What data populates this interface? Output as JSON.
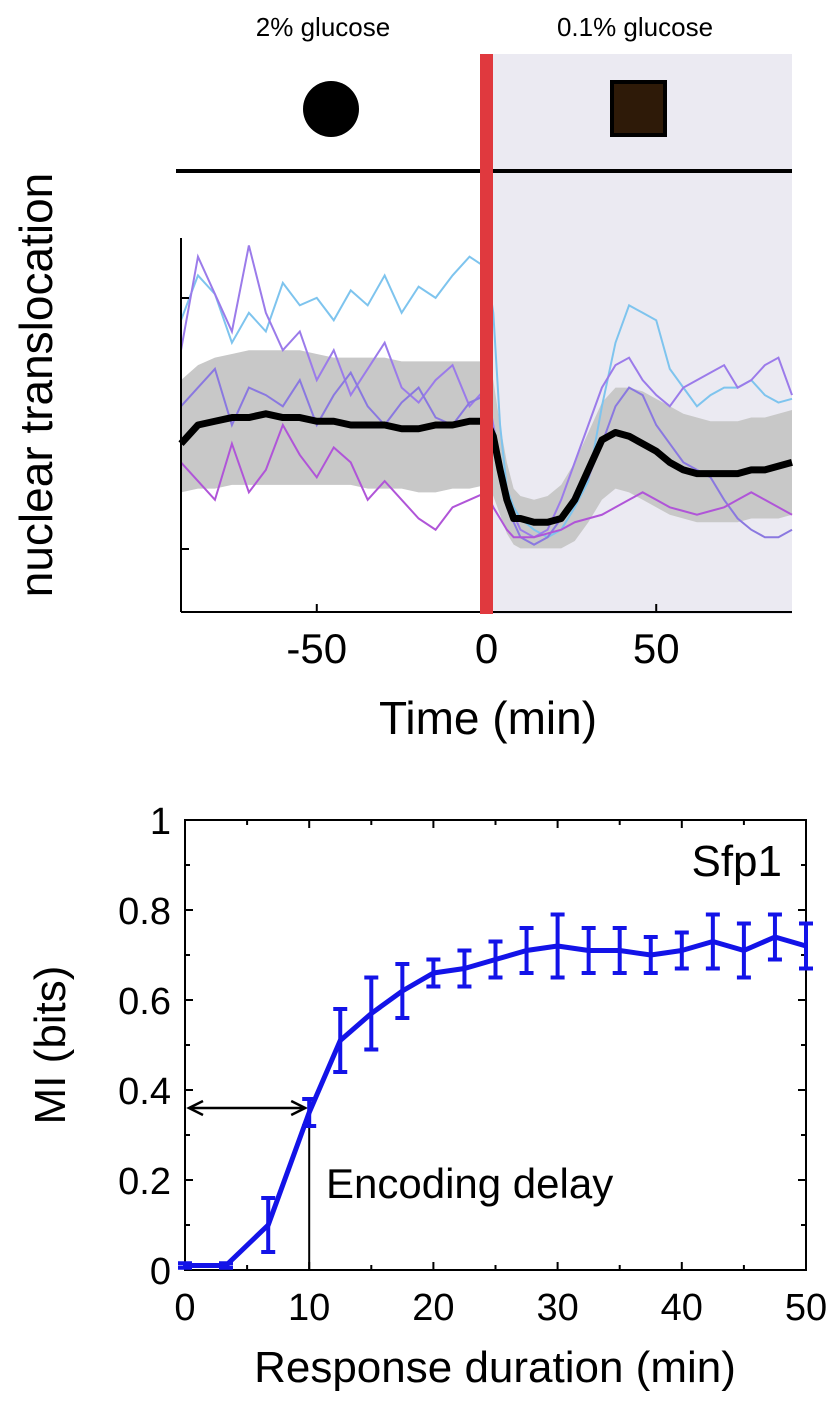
{
  "chart_data": [
    {
      "type": "line",
      "title": "",
      "conditions": [
        {
          "label": "2% glucose",
          "marker": "filled-circle-icon",
          "marker_color": "#000000"
        },
        {
          "label": "0.1% glucose",
          "marker": "filled-square-icon",
          "marker_color": "#2e1a08"
        }
      ],
      "xlabel": "Time (min)",
      "ylabel": "nuclear translocation",
      "xlim": [
        -90,
        90
      ],
      "ylim": [
        0,
        1
      ],
      "xticks": [
        -50,
        0,
        50
      ],
      "xtick_labels": [
        "-50",
        "0",
        "50"
      ],
      "stimulus_time": 0,
      "stimulus_color": "#e0393e",
      "shaded_region": {
        "from": 0,
        "to": 90,
        "color": "#ebeaf2"
      },
      "band_color": "#c8c8c8",
      "mean_color": "#000000",
      "time": [
        -90,
        -85,
        -80,
        -75,
        -70,
        -65,
        -60,
        -55,
        -50,
        -45,
        -40,
        -35,
        -30,
        -25,
        -20,
        -15,
        -10,
        -5,
        0,
        2,
        4,
        6,
        8,
        10,
        14,
        18,
        22,
        26,
        30,
        34,
        38,
        42,
        46,
        50,
        54,
        58,
        62,
        66,
        70,
        74,
        78,
        82,
        86,
        90
      ],
      "mean": [
        0.45,
        0.5,
        0.51,
        0.52,
        0.52,
        0.53,
        0.52,
        0.52,
        0.51,
        0.51,
        0.5,
        0.5,
        0.5,
        0.49,
        0.49,
        0.5,
        0.5,
        0.51,
        0.51,
        0.47,
        0.38,
        0.3,
        0.25,
        0.25,
        0.24,
        0.24,
        0.25,
        0.3,
        0.38,
        0.46,
        0.48,
        0.47,
        0.45,
        0.43,
        0.4,
        0.38,
        0.37,
        0.37,
        0.37,
        0.37,
        0.38,
        0.38,
        0.39,
        0.4
      ],
      "band_upper": [
        0.62,
        0.66,
        0.68,
        0.69,
        0.7,
        0.7,
        0.7,
        0.7,
        0.69,
        0.68,
        0.68,
        0.68,
        0.68,
        0.67,
        0.67,
        0.67,
        0.67,
        0.67,
        0.67,
        0.62,
        0.5,
        0.4,
        0.33,
        0.31,
        0.3,
        0.31,
        0.34,
        0.4,
        0.48,
        0.56,
        0.6,
        0.6,
        0.59,
        0.57,
        0.55,
        0.53,
        0.52,
        0.51,
        0.51,
        0.51,
        0.52,
        0.52,
        0.53,
        0.54
      ],
      "band_lower": [
        0.32,
        0.33,
        0.33,
        0.34,
        0.34,
        0.34,
        0.34,
        0.34,
        0.34,
        0.34,
        0.34,
        0.33,
        0.33,
        0.33,
        0.32,
        0.32,
        0.33,
        0.33,
        0.34,
        0.31,
        0.26,
        0.21,
        0.18,
        0.17,
        0.17,
        0.17,
        0.17,
        0.19,
        0.24,
        0.3,
        0.33,
        0.32,
        0.3,
        0.28,
        0.26,
        0.25,
        0.24,
        0.24,
        0.24,
        0.24,
        0.25,
        0.25,
        0.25,
        0.26
      ],
      "series": [
        {
          "color": "#7ec4ee",
          "values": [
            0.78,
            0.9,
            0.85,
            0.72,
            0.8,
            0.75,
            0.88,
            0.82,
            0.84,
            0.78,
            0.86,
            0.82,
            0.9,
            0.8,
            0.87,
            0.84,
            0.9,
            0.95,
            0.92,
            0.8,
            0.5,
            0.33,
            0.28,
            0.25,
            0.22,
            0.2,
            0.22,
            0.28,
            0.35,
            0.55,
            0.72,
            0.82,
            0.8,
            0.78,
            0.65,
            0.6,
            0.55,
            0.58,
            0.6,
            0.6,
            0.62,
            0.58,
            0.56,
            0.57
          ]
        },
        {
          "color": "#9b7bea",
          "values": [
            0.7,
            0.95,
            0.85,
            0.75,
            0.98,
            0.8,
            0.7,
            0.75,
            0.62,
            0.7,
            0.58,
            0.65,
            0.72,
            0.6,
            0.56,
            0.62,
            0.66,
            0.55,
            0.6,
            0.5,
            0.4,
            0.3,
            0.26,
            0.22,
            0.2,
            0.22,
            0.3,
            0.4,
            0.5,
            0.6,
            0.66,
            0.68,
            0.62,
            0.58,
            0.55,
            0.6,
            0.62,
            0.64,
            0.66,
            0.6,
            0.62,
            0.66,
            0.68,
            0.58
          ]
        },
        {
          "color": "#8a78e0",
          "values": [
            0.55,
            0.6,
            0.65,
            0.5,
            0.6,
            0.58,
            0.55,
            0.62,
            0.5,
            0.58,
            0.64,
            0.55,
            0.5,
            0.56,
            0.6,
            0.52,
            0.5,
            0.56,
            0.58,
            0.45,
            0.35,
            0.28,
            0.24,
            0.2,
            0.18,
            0.2,
            0.25,
            0.3,
            0.36,
            0.45,
            0.55,
            0.6,
            0.58,
            0.5,
            0.45,
            0.4,
            0.38,
            0.36,
            0.3,
            0.25,
            0.22,
            0.2,
            0.2,
            0.22
          ]
        },
        {
          "color": "#b055d8",
          "values": [
            0.4,
            0.35,
            0.3,
            0.45,
            0.32,
            0.38,
            0.5,
            0.42,
            0.36,
            0.44,
            0.4,
            0.3,
            0.35,
            0.3,
            0.25,
            0.22,
            0.28,
            0.3,
            0.32,
            0.28,
            0.25,
            0.22,
            0.2,
            0.2,
            0.2,
            0.21,
            0.22,
            0.24,
            0.25,
            0.26,
            0.28,
            0.3,
            0.32,
            0.3,
            0.28,
            0.27,
            0.26,
            0.27,
            0.28,
            0.3,
            0.32,
            0.3,
            0.28,
            0.26
          ]
        }
      ]
    },
    {
      "type": "line",
      "title": "Sfp1",
      "xlabel": "Response duration (min)",
      "ylabel": "MI (bits)",
      "xlim": [
        0,
        50
      ],
      "ylim": [
        0,
        1
      ],
      "xticks": [
        0,
        10,
        20,
        30,
        40,
        50
      ],
      "xtick_labels": [
        "0",
        "10",
        "20",
        "30",
        "40",
        "50"
      ],
      "yticks": [
        0,
        0.2,
        0.4,
        0.6,
        0.8,
        1
      ],
      "ytick_labels": [
        "0",
        "0.2",
        "0.4",
        "0.6",
        "0.8",
        "1"
      ],
      "series_color": "#1313e8",
      "x": [
        0,
        3.3,
        6.7,
        10,
        12.5,
        15,
        17.5,
        20,
        22.5,
        25,
        27.5,
        30,
        32.5,
        35,
        37.5,
        40,
        42.5,
        45,
        47.5,
        50
      ],
      "y": [
        0.01,
        0.01,
        0.1,
        0.35,
        0.51,
        0.57,
        0.62,
        0.66,
        0.67,
        0.69,
        0.71,
        0.72,
        0.71,
        0.71,
        0.7,
        0.71,
        0.73,
        0.71,
        0.74,
        0.72
      ],
      "err": [
        0.005,
        0.005,
        0.06,
        0.03,
        0.07,
        0.08,
        0.06,
        0.03,
        0.04,
        0.04,
        0.05,
        0.07,
        0.05,
        0.05,
        0.04,
        0.04,
        0.06,
        0.06,
        0.05,
        0.05
      ],
      "annotation": {
        "text": "Encoding delay",
        "value": 10,
        "at_y": 0.36
      }
    }
  ]
}
